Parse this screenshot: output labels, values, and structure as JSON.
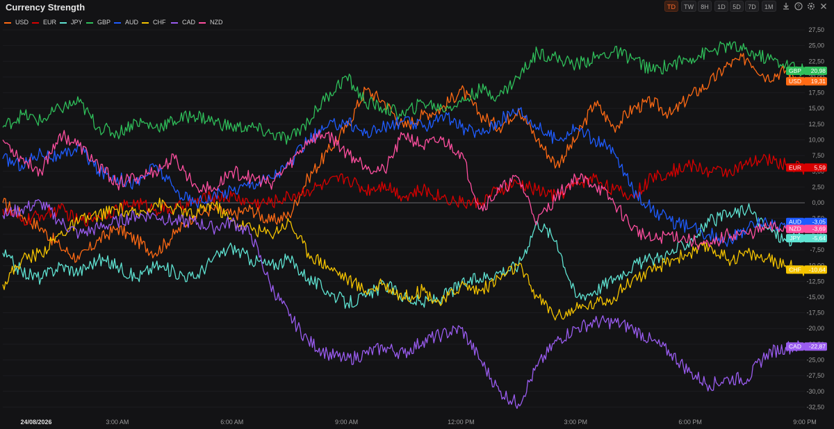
{
  "header": {
    "title": "Currency Strength",
    "timeframes": [
      "TD",
      "TW",
      "8H",
      "1D",
      "5D",
      "7D",
      "1M"
    ],
    "active_timeframe": "TD",
    "icons": [
      "download-icon",
      "help-icon",
      "settings-icon",
      "close-icon"
    ]
  },
  "chart_data": {
    "type": "line",
    "title": "Currency Strength",
    "xlabel": "",
    "ylabel": "",
    "x_ticks": [
      "24/08/2026",
      "3:00 AM",
      "6:00 AM",
      "9:00 AM",
      "12:00 PM",
      "3:00 PM",
      "6:00 PM",
      "9:00 PM"
    ],
    "y_ticks": [
      "27,50",
      "25,00",
      "22,50",
      "20,00",
      "17,50",
      "15,00",
      "12,50",
      "10,00",
      "7,50",
      "5,00",
      "2,50",
      "0,00",
      "-2,50",
      "-5,00",
      "-7,50",
      "-10,00",
      "-12,50",
      "-15,00",
      "-17,50",
      "-20,00",
      "-22,50",
      "-25,00",
      "-27,50",
      "-30,00",
      "-32,50"
    ],
    "ylim": [
      -34,
      27.5
    ],
    "xlim": [
      0,
      21
    ],
    "zero_line": true,
    "legend_position": "top-left",
    "series": [
      {
        "name": "USD",
        "color": "#ff6a14",
        "last_label": "19,31",
        "x": [
          0,
          0.5,
          1,
          1.5,
          2,
          2.5,
          3,
          3.5,
          4,
          4.5,
          5,
          5.5,
          6,
          6.5,
          7,
          7.5,
          8,
          8.5,
          9,
          9.5,
          10,
          10.5,
          11,
          11.5,
          12,
          12.5,
          13,
          13.5,
          14,
          14.5,
          15,
          15.5,
          16,
          16.5,
          17,
          17.5,
          18,
          18.5,
          19,
          19.5,
          20,
          20.5,
          21
        ],
        "y": [
          0,
          -2,
          -4,
          -7,
          -9,
          -6,
          -4,
          -6,
          -8,
          -5,
          -2,
          -1,
          -2,
          -1,
          -3,
          -2,
          4,
          8,
          12,
          18,
          16,
          12,
          14,
          15,
          18,
          14,
          12,
          15,
          10,
          6,
          10,
          16,
          12,
          15,
          16,
          14,
          17,
          19,
          22,
          23,
          20,
          21,
          19.31
        ]
      },
      {
        "name": "EUR",
        "color": "#d90000",
        "last_label": "5,59",
        "x": [
          0,
          0.5,
          1,
          1.5,
          2,
          2.5,
          3,
          3.5,
          4,
          4.5,
          5,
          5.5,
          6,
          6.5,
          7,
          7.5,
          8,
          8.5,
          9,
          9.5,
          10,
          10.5,
          11,
          11.5,
          12,
          12.5,
          13,
          13.5,
          14,
          14.5,
          15,
          15.5,
          16,
          16.5,
          17,
          17.5,
          18,
          18.5,
          19,
          19.5,
          20,
          20.5,
          21
        ],
        "y": [
          -1,
          -3,
          -2,
          -1,
          -3,
          -2,
          -1,
          0,
          -1,
          -1,
          0,
          1,
          1,
          0,
          0,
          1,
          2,
          3,
          4,
          2,
          3,
          1,
          2,
          1,
          0,
          0,
          2,
          3,
          2,
          1,
          3,
          4,
          2,
          1,
          4,
          5,
          6,
          5,
          5,
          6,
          7,
          6,
          5.59
        ]
      },
      {
        "name": "JPY",
        "color": "#5fe3d2",
        "last_label": "-5,64",
        "x": [
          0,
          0.5,
          1,
          1.5,
          2,
          2.5,
          3,
          3.5,
          4,
          4.5,
          5,
          5.5,
          6,
          6.5,
          7,
          7.5,
          8,
          8.5,
          9,
          9.5,
          10,
          10.5,
          11,
          11.5,
          12,
          12.5,
          13,
          13.5,
          14,
          14.5,
          15,
          15.5,
          16,
          16.5,
          17,
          17.5,
          18,
          18.5,
          19,
          19.5,
          20,
          20.5,
          21
        ],
        "y": [
          -8,
          -11,
          -12,
          -10,
          -11,
          -9,
          -10,
          -12,
          -10,
          -11,
          -12,
          -9,
          -7,
          -9,
          -10,
          -9,
          -12,
          -14,
          -16,
          -15,
          -13,
          -15,
          -16,
          -15,
          -13,
          -12,
          -11,
          -10,
          -3,
          -6,
          -15,
          -14,
          -12,
          -10,
          -9,
          -8,
          -6,
          -3,
          -2,
          -1,
          -4,
          -6,
          -5.64
        ]
      },
      {
        "name": "GBP",
        "color": "#2fbf5a",
        "last_label": "20,98",
        "x": [
          0,
          0.5,
          1,
          1.5,
          2,
          2.5,
          3,
          3.5,
          4,
          4.5,
          5,
          5.5,
          6,
          6.5,
          7,
          7.5,
          8,
          8.5,
          9,
          9.5,
          10,
          10.5,
          11,
          11.5,
          12,
          12.5,
          13,
          13.5,
          14,
          14.5,
          15,
          15.5,
          16,
          16.5,
          17,
          17.5,
          18,
          18.5,
          19,
          19.5,
          20,
          20.5,
          21
        ],
        "y": [
          12,
          14,
          13,
          15,
          16,
          12,
          11,
          13,
          12,
          13,
          14,
          13,
          12,
          12,
          11,
          10,
          13,
          17,
          20,
          16,
          15,
          14,
          16,
          15,
          16,
          18,
          17,
          20,
          24,
          23,
          22,
          23,
          24,
          23,
          21,
          22,
          23,
          24,
          25,
          24,
          23,
          22,
          20.98
        ]
      },
      {
        "name": "AUD",
        "color": "#1f5cff",
        "last_label": "-3,05",
        "x": [
          0,
          0.5,
          1,
          1.5,
          2,
          2.5,
          3,
          3.5,
          4,
          4.5,
          5,
          5.5,
          6,
          6.5,
          7,
          7.5,
          8,
          8.5,
          9,
          9.5,
          10,
          10.5,
          11,
          11.5,
          12,
          12.5,
          13,
          13.5,
          14,
          14.5,
          15,
          15.5,
          16,
          16.5,
          17,
          17.5,
          18,
          18.5,
          19,
          19.5,
          20,
          20.5,
          21
        ],
        "y": [
          7,
          6,
          8,
          7,
          9,
          5,
          4,
          3,
          6,
          2,
          0,
          1,
          2,
          3,
          4,
          6,
          10,
          12,
          13,
          11,
          12,
          13,
          12,
          14,
          12,
          11,
          13,
          15,
          12,
          10,
          12,
          10,
          8,
          2,
          -1,
          -3,
          -4,
          -5,
          -6,
          -4,
          -3,
          -4,
          -3.05
        ]
      },
      {
        "name": "CHF",
        "color": "#f5c400",
        "last_label": "-10,64",
        "x": [
          0,
          0.5,
          1,
          1.5,
          2,
          2.5,
          3,
          3.5,
          4,
          4.5,
          5,
          5.5,
          6,
          6.5,
          7,
          7.5,
          8,
          8.5,
          9,
          9.5,
          10,
          10.5,
          11,
          11.5,
          12,
          12.5,
          13,
          13.5,
          14,
          14.5,
          15,
          15.5,
          16,
          16.5,
          17,
          17.5,
          18,
          18.5,
          19,
          19.5,
          20,
          20.5,
          21
        ],
        "y": [
          -13,
          -9,
          -8,
          -5,
          -3,
          -2,
          -1,
          -2,
          0,
          -1,
          -2,
          0,
          -3,
          -4,
          -5,
          -3,
          -8,
          -10,
          -12,
          -14,
          -13,
          -15,
          -14,
          -16,
          -13,
          -14,
          -12,
          -10,
          -15,
          -18,
          -17,
          -16,
          -15,
          -12,
          -11,
          -9,
          -8,
          -7,
          -9,
          -8,
          -9,
          -10,
          -10.64
        ]
      },
      {
        "name": "CAD",
        "color": "#9a5cf0",
        "last_label": "-22,87",
        "x": [
          0,
          0.5,
          1,
          1.5,
          2,
          2.5,
          3,
          3.5,
          4,
          4.5,
          5,
          5.5,
          6,
          6.5,
          7,
          7.5,
          8,
          8.5,
          9,
          9.5,
          10,
          10.5,
          11,
          11.5,
          12,
          12.5,
          13,
          13.5,
          14,
          14.5,
          15,
          15.5,
          16,
          16.5,
          17,
          17.5,
          18,
          18.5,
          19,
          19.5,
          20,
          20.5,
          21
        ],
        "y": [
          -2,
          -1,
          0,
          -3,
          -5,
          -4,
          -3,
          -2,
          -2,
          -3,
          -3,
          -4,
          -3,
          -5,
          -13,
          -18,
          -22,
          -24,
          -25,
          -24,
          -23,
          -24,
          -22,
          -21,
          -20,
          -25,
          -30,
          -32,
          -26,
          -22,
          -20,
          -19,
          -19,
          -20,
          -22,
          -24,
          -27,
          -29,
          -28,
          -28,
          -24,
          -23,
          -22.87
        ]
      },
      {
        "name": "NZD",
        "color": "#ff4fa0",
        "last_label": "-3,69",
        "x": [
          0,
          0.5,
          1,
          1.5,
          2,
          2.5,
          3,
          3.5,
          4,
          4.5,
          5,
          5.5,
          6,
          6.5,
          7,
          7.5,
          8,
          8.5,
          9,
          9.5,
          10,
          10.5,
          11,
          11.5,
          12,
          12.5,
          13,
          13.5,
          14,
          14.5,
          15,
          15.5,
          16,
          16.5,
          17,
          17.5,
          18,
          18.5,
          19,
          19.5,
          20,
          20.5,
          21
        ],
        "y": [
          10,
          7,
          5,
          11,
          9,
          6,
          3,
          4,
          5,
          7,
          3,
          2,
          5,
          4,
          3,
          6,
          10,
          11,
          8,
          6,
          5,
          11,
          9,
          10,
          8,
          -1,
          2,
          4,
          -3,
          1,
          4,
          3,
          0,
          -4,
          -6,
          -5,
          -6,
          -7,
          -5,
          -5,
          -4,
          -4,
          -3.69
        ]
      }
    ]
  }
}
